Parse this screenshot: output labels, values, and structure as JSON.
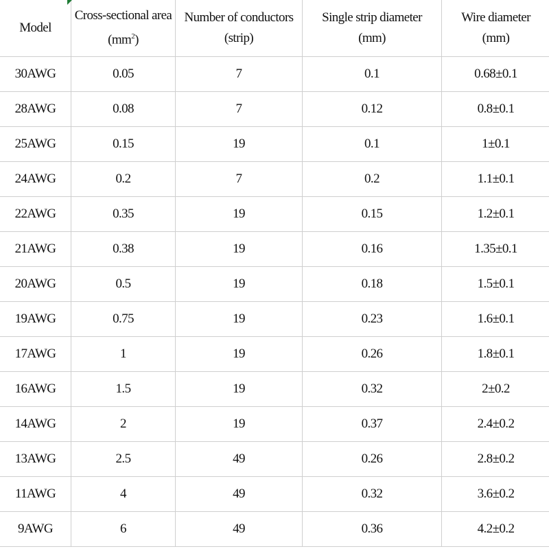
{
  "columns": [
    {
      "line1": "Model",
      "line2": ""
    },
    {
      "line1": "Cross-sectional area",
      "line2": "(mm",
      "sup": "2",
      "line2_end": ")"
    },
    {
      "line1": "Number of conductors",
      "line2": "(strip)"
    },
    {
      "line1": "Single strip diameter",
      "line2": "(mm)"
    },
    {
      "line1": "Wire diameter",
      "line2": "(mm)"
    }
  ],
  "rows": [
    [
      "30AWG",
      "0.05",
      "7",
      "0.1",
      "0.68±0.1"
    ],
    [
      "28AWG",
      "0.08",
      "7",
      "0.12",
      "0.8±0.1"
    ],
    [
      "25AWG",
      "0.15",
      "19",
      "0.1",
      "1±0.1"
    ],
    [
      "24AWG",
      "0.2",
      "7",
      "0.2",
      "1.1±0.1"
    ],
    [
      "22AWG",
      "0.35",
      "19",
      "0.15",
      "1.2±0.1"
    ],
    [
      "21AWG",
      "0.38",
      "19",
      "0.16",
      "1.35±0.1"
    ],
    [
      "20AWG",
      "0.5",
      "19",
      "0.18",
      "1.5±0.1"
    ],
    [
      "19AWG",
      "0.75",
      "19",
      "0.23",
      "1.6±0.1"
    ],
    [
      "17AWG",
      "1",
      "19",
      "0.26",
      "1.8±0.1"
    ],
    [
      "16AWG",
      "1.5",
      "19",
      "0.32",
      "2±0.2"
    ],
    [
      "14AWG",
      "2",
      "19",
      "0.37",
      "2.4±0.2"
    ],
    [
      "13AWG",
      "2.5",
      "49",
      "0.26",
      "2.8±0.2"
    ],
    [
      "11AWG",
      "4",
      "49",
      "0.32",
      "3.6±0.2"
    ],
    [
      "9AWG",
      "6",
      "49",
      "0.36",
      "4.2±0.2"
    ]
  ],
  "colors": {
    "grid": "#cfcfcf",
    "cell_marker": "#1e7b34"
  }
}
